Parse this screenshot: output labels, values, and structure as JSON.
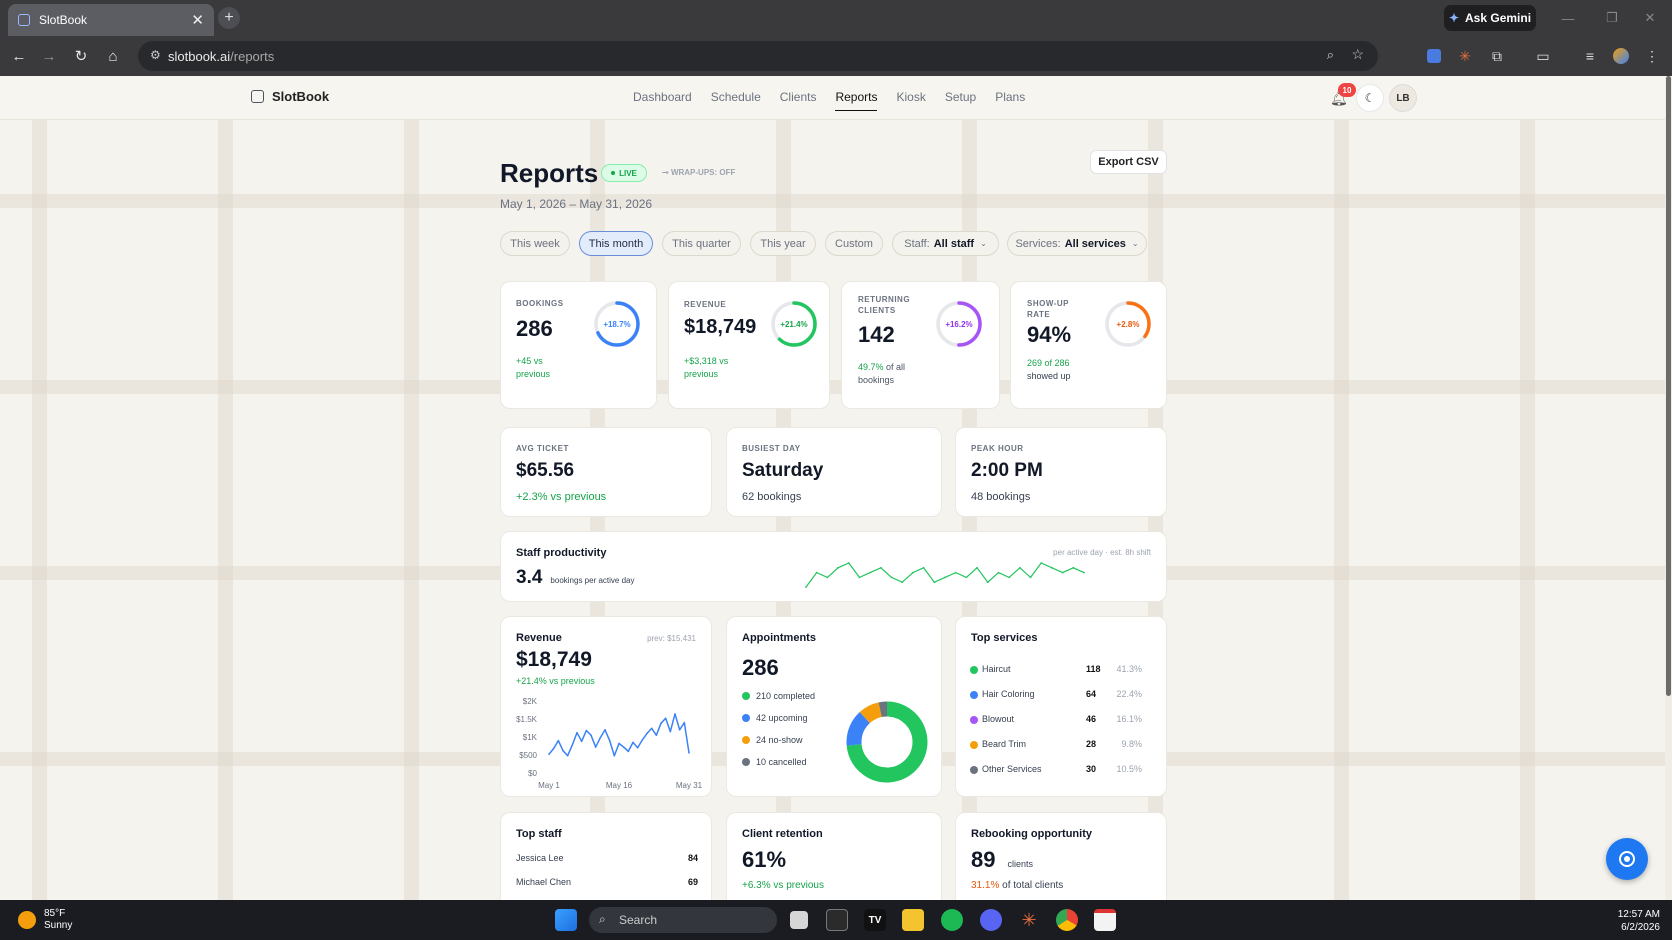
{
  "browser": {
    "tab_title": "SlotBook",
    "url_host": "slotbook.ai",
    "url_path": "/reports",
    "gemini_label": "Ask Gemini"
  },
  "app": {
    "brand": "SlotBook",
    "nav": [
      "Dashboard",
      "Schedule",
      "Clients",
      "Reports",
      "Kiosk",
      "Setup",
      "Plans"
    ],
    "active_nav": "Reports",
    "notifications": "10",
    "avatar": "LB"
  },
  "header": {
    "title": "Reports",
    "live": "LIVE",
    "wrapups": "WRAP-UPS: OFF",
    "date_range": "May 1, 2026 – May 31, 2026",
    "export": "Export CSV"
  },
  "filters": {
    "ranges": [
      "This week",
      "This month",
      "This quarter",
      "This year",
      "Custom"
    ],
    "selected_range": "This month",
    "staff_label": "Staff:",
    "staff_value": "All staff",
    "services_label": "Services:",
    "services_value": "All services"
  },
  "kpis": [
    {
      "label": "BOOKINGS",
      "value": "286",
      "ring": "+18.7%",
      "ring_pct": 0.68,
      "color": "#3b82f6",
      "sub1": "+45 vs",
      "sub2": "previous",
      "sub_green": true
    },
    {
      "label": "REVENUE",
      "value": "$18,749",
      "ring": "+21.4%",
      "ring_pct": 0.62,
      "color": "#22c55e",
      "sub1": "+$3,318 vs",
      "sub2": "previous",
      "sub_green": true
    },
    {
      "label": "RETURNING CLIENTS",
      "label1": "RETURNING",
      "label2": "CLIENTS",
      "value": "142",
      "ring": "+16.2%",
      "ring_pct": 0.5,
      "color": "#a855f7",
      "sub1": "49.7%",
      "sub1b": " of all",
      "sub2": "bookings"
    },
    {
      "label": "SHOW-UP RATE",
      "label1": "SHOW-UP",
      "label2": "RATE",
      "value": "94%",
      "ring": "+2.8%",
      "ring_pct": 0.35,
      "color": "#f97316",
      "sub1": "269 of 286",
      "sub2": "showed up"
    }
  ],
  "stats": [
    {
      "label": "AVG TICKET",
      "value": "$65.56",
      "sub": "+2.3% vs previous"
    },
    {
      "label": "BUSIEST DAY",
      "value": "Saturday",
      "sub": "62 bookings"
    },
    {
      "label": "PEAK HOUR",
      "value": "2:00 PM",
      "sub": "48 bookings"
    }
  ],
  "productivity": {
    "title": "Staff productivity",
    "value": "3.4",
    "unit": "bookings per active day",
    "note": "per active day · est. 8h shift",
    "spark": [
      3.2,
      3.5,
      3.4,
      3.6,
      3.7,
      3.4,
      3.5,
      3.6,
      3.4,
      3.3,
      3.5,
      3.6,
      3.3,
      3.4,
      3.5,
      3.4,
      3.6,
      3.3,
      3.5,
      3.4,
      3.6,
      3.4,
      3.7,
      3.6,
      3.5,
      3.6,
      3.5
    ]
  },
  "revenue": {
    "title": "Revenue",
    "prev": "prev: $15,431",
    "value": "$18,749",
    "change": "+21.4% vs previous"
  },
  "appointments": {
    "title": "Appointments",
    "total": "286",
    "legend": [
      {
        "label": "210 completed",
        "value": 210,
        "color": "#22c55e"
      },
      {
        "label": "42 upcoming",
        "value": 42,
        "color": "#3b82f6"
      },
      {
        "label": "24 no-show",
        "value": 24,
        "color": "#f59e0b"
      },
      {
        "label": "10 cancelled",
        "value": 10,
        "color": "#6b7280"
      }
    ]
  },
  "top_services": {
    "title": "Top services",
    "rows": [
      {
        "name": "Haircut",
        "count": "118",
        "pct": "41.3%",
        "color": "#22c55e"
      },
      {
        "name": "Hair Coloring",
        "count": "64",
        "pct": "22.4%",
        "color": "#3b82f6"
      },
      {
        "name": "Blowout",
        "count": "46",
        "pct": "16.1%",
        "color": "#a855f7"
      },
      {
        "name": "Beard Trim",
        "count": "28",
        "pct": "9.8%",
        "color": "#f59e0b"
      },
      {
        "name": "Other Services",
        "count": "30",
        "pct": "10.5%",
        "color": "#6b7280"
      }
    ]
  },
  "top_staff": {
    "title": "Top staff",
    "rows": [
      {
        "name": "Jessica Lee",
        "count": "84"
      },
      {
        "name": "Michael Chen",
        "count": "69"
      }
    ]
  },
  "retention": {
    "title": "Client retention",
    "value": "61%",
    "sub": "+6.3% vs previous"
  },
  "rebooking": {
    "title": "Rebooking opportunity",
    "value": "89",
    "unit": "clients",
    "pct": "31.1%",
    "pct_tail": " of total clients"
  },
  "chart_data": {
    "type": "line",
    "title": "Revenue",
    "x_tick_labels": [
      "May 1",
      "May 16",
      "May 31"
    ],
    "y_tick_labels": [
      "$2K",
      "$1.5K",
      "$1K",
      "$500",
      "$0"
    ],
    "ylim": [
      0,
      2000
    ],
    "x": [
      1,
      2,
      3,
      4,
      5,
      6,
      7,
      8,
      9,
      10,
      11,
      12,
      13,
      14,
      15,
      16,
      17,
      18,
      19,
      20,
      21,
      22,
      23,
      24,
      25,
      26,
      27,
      28,
      29,
      30,
      31
    ],
    "series": [
      {
        "values": [
          520,
          680,
          900,
          620,
          480,
          780,
          1120,
          880,
          1180,
          1050,
          720,
          980,
          1200,
          900,
          480,
          820,
          720,
          600,
          850,
          700,
          920,
          1100,
          1240,
          1050,
          1380,
          1520,
          1150,
          1640,
          1200,
          1400,
          560
        ]
      }
    ],
    "grid": false,
    "legend": "none"
  },
  "system": {
    "temp": "85°F",
    "weather": "Sunny",
    "search": "Search",
    "time": "12:57 AM",
    "date": "6/2/2026"
  }
}
